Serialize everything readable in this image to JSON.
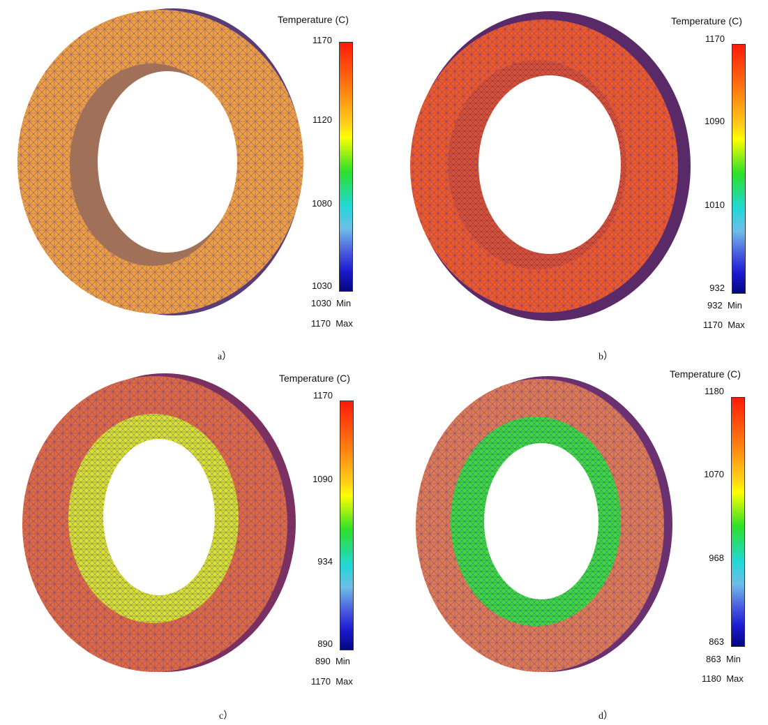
{
  "panels": [
    {
      "caption": "a）",
      "legend_title": "Temperature (C)",
      "ticks": [
        "1170",
        "1120",
        "1080",
        "1030"
      ],
      "min_value": "1030",
      "min_label": "Min",
      "max_value": "1170",
      "max_label": "Max",
      "surface_color": "#f0a040",
      "mesh_color": "#4a3aa8"
    },
    {
      "caption": "b）",
      "legend_title": "Temperature (C)",
      "ticks": [
        "1170",
        "1090",
        "1010",
        "932"
      ],
      "min_value": "932",
      "min_label": "Min",
      "max_value": "1170",
      "max_label": "Max",
      "surface_color": "#f05a28",
      "mesh_color": "#4a3aa8"
    },
    {
      "caption": "c）",
      "legend_title": "Temperature (C)",
      "ticks": [
        "1170",
        "1090",
        "934",
        "890"
      ],
      "min_value": "890",
      "min_label": "Min",
      "max_value": "1170",
      "max_label": "Max",
      "surface_color": "#d8e030",
      "mesh_color": "#4a3aa8"
    },
    {
      "caption": "d）",
      "legend_title": "Temperature (C)",
      "ticks": [
        "1180",
        "1070",
        "968",
        "863"
      ],
      "min_value": "863",
      "min_label": "Min",
      "max_value": "1180",
      "max_label": "Max",
      "surface_color": "#40d840",
      "mesh_color": "#4a3aa8"
    }
  ]
}
